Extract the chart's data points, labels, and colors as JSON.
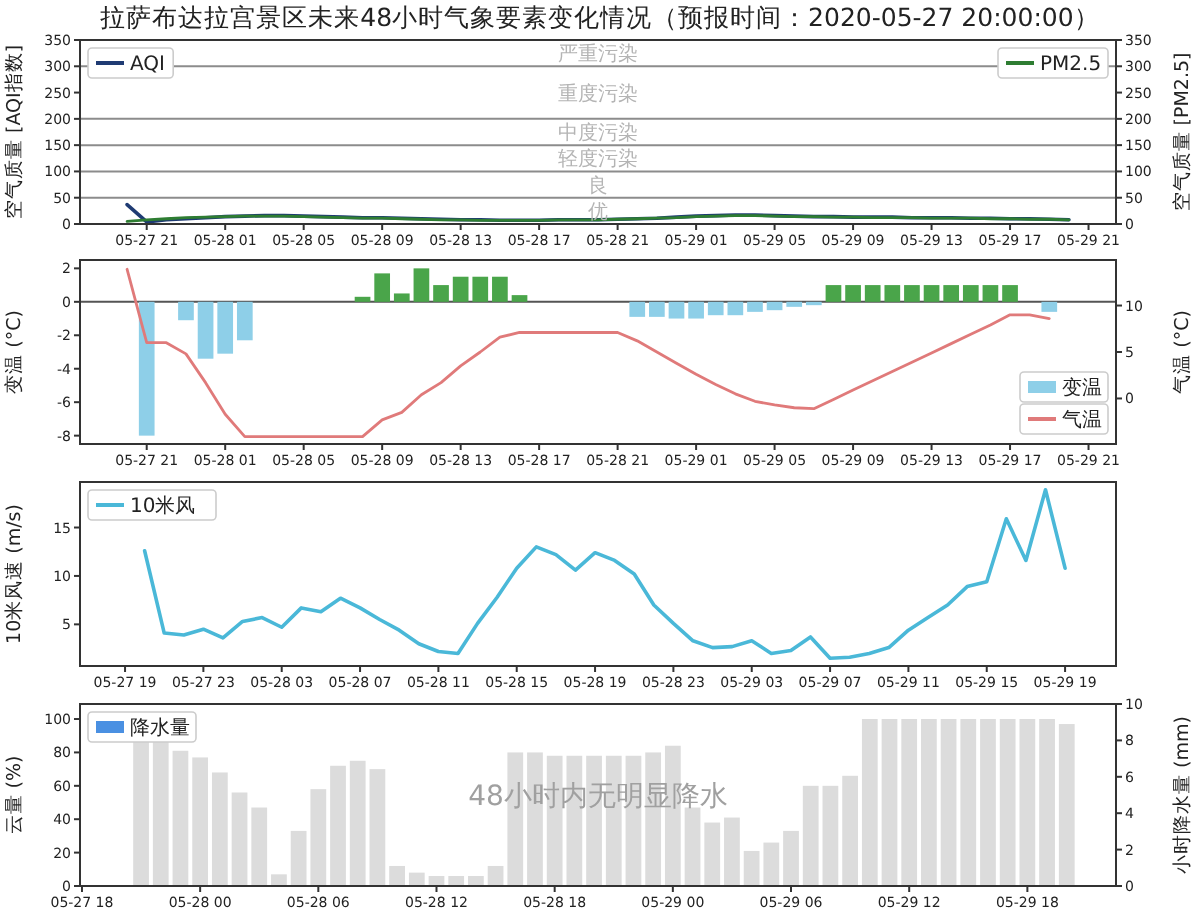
{
  "chart_data": [
    {
      "type": "line",
      "title": "拉萨布达拉宫景区未来48小时气象要素变化情况（预报时间：2020-05-27 20:00:00）",
      "ylabel": "空气质量 [AQI指数]",
      "y2label": "空气质量 [PM2.5]",
      "x": [
        "2020-05-27T20:00",
        "2020-05-27T21:00",
        "2020-05-27T22:00",
        "2020-05-27T23:00",
        "2020-05-28T00:00",
        "2020-05-28T01:00",
        "2020-05-28T02:00",
        "2020-05-28T03:00",
        "2020-05-28T04:00",
        "2020-05-28T05:00",
        "2020-05-28T06:00",
        "2020-05-28T07:00",
        "2020-05-28T08:00",
        "2020-05-28T09:00",
        "2020-05-28T10:00",
        "2020-05-28T11:00",
        "2020-05-28T12:00",
        "2020-05-28T13:00",
        "2020-05-28T14:00",
        "2020-05-28T15:00",
        "2020-05-28T16:00",
        "2020-05-28T17:00",
        "2020-05-28T18:00",
        "2020-05-28T19:00",
        "2020-05-28T20:00",
        "2020-05-28T21:00",
        "2020-05-28T22:00",
        "2020-05-28T23:00",
        "2020-05-29T00:00",
        "2020-05-29T01:00",
        "2020-05-29T02:00",
        "2020-05-29T03:00",
        "2020-05-29T04:00",
        "2020-05-29T05:00",
        "2020-05-29T06:00",
        "2020-05-29T07:00",
        "2020-05-29T08:00",
        "2020-05-29T09:00",
        "2020-05-29T10:00",
        "2020-05-29T11:00",
        "2020-05-29T12:00",
        "2020-05-29T13:00",
        "2020-05-29T14:00",
        "2020-05-29T15:00",
        "2020-05-29T16:00",
        "2020-05-29T17:00",
        "2020-05-29T18:00",
        "2020-05-29T19:00",
        "2020-05-29T20:00"
      ],
      "xlim": [
        "2020-05-27T17:36",
        "2020-05-29T22:24"
      ],
      "xticks": [
        {
          "value": "2020-05-27T21:00",
          "label": "05-27 21"
        },
        {
          "value": "2020-05-28T01:00",
          "label": "05-28 01"
        },
        {
          "value": "2020-05-28T05:00",
          "label": "05-28 05"
        },
        {
          "value": "2020-05-28T09:00",
          "label": "05-28 09"
        },
        {
          "value": "2020-05-28T13:00",
          "label": "05-28 13"
        },
        {
          "value": "2020-05-28T17:00",
          "label": "05-28 17"
        },
        {
          "value": "2020-05-28T21:00",
          "label": "05-28 21"
        },
        {
          "value": "2020-05-29T01:00",
          "label": "05-29 01"
        },
        {
          "value": "2020-05-29T05:00",
          "label": "05-29 05"
        },
        {
          "value": "2020-05-29T09:00",
          "label": "05-29 09"
        },
        {
          "value": "2020-05-29T13:00",
          "label": "05-29 13"
        },
        {
          "value": "2020-05-29T17:00",
          "label": "05-29 17"
        },
        {
          "value": "2020-05-29T21:00",
          "label": "05-29 21"
        }
      ],
      "ylim": [
        0,
        350
      ],
      "yticks": [
        0,
        50,
        100,
        150,
        200,
        250,
        300,
        350
      ],
      "y2lim": [
        0,
        350
      ],
      "y2ticks": [
        0,
        50,
        100,
        150,
        200,
        250,
        300,
        350
      ],
      "series": [
        {
          "name": "AQI",
          "color": "#1f3b73",
          "values": [
            37,
            4,
            8,
            10,
            12,
            14,
            15,
            16,
            16,
            15,
            14,
            13,
            12,
            12,
            11,
            10,
            9,
            8,
            8,
            7,
            7,
            7,
            8,
            8,
            8,
            9,
            10,
            11,
            13,
            15,
            16,
            17,
            17,
            16,
            15,
            14,
            14,
            13,
            13,
            13,
            12,
            12,
            12,
            11,
            11,
            10,
            10,
            9,
            8
          ]
        },
        {
          "name": "PM2.5",
          "color": "#2e7d32",
          "axis": "y2",
          "values": [
            5,
            8,
            10,
            12,
            13,
            14,
            15,
            15,
            15,
            14,
            13,
            12,
            11,
            11,
            10,
            9,
            8,
            8,
            7,
            7,
            7,
            7,
            8,
            8,
            8,
            9,
            10,
            11,
            12,
            14,
            15,
            16,
            16,
            15,
            14,
            14,
            13,
            13,
            12,
            12,
            12,
            11,
            11,
            11,
            10,
            10,
            9,
            9,
            8
          ]
        }
      ],
      "ref_lines": [
        {
          "axis": "y",
          "value": 50,
          "color": "#8c8c8c"
        },
        {
          "axis": "y",
          "value": 100,
          "color": "#8c8c8c"
        },
        {
          "axis": "y",
          "value": 150,
          "color": "#8c8c8c"
        },
        {
          "axis": "y",
          "value": 200,
          "color": "#8c8c8c"
        },
        {
          "axis": "y",
          "value": 300,
          "color": "#8c8c8c"
        }
      ],
      "annotations": [
        "优",
        "良",
        "轻度污染",
        "中度污染",
        "重度污染",
        "严重污染"
      ],
      "legend": "top"
    },
    {
      "type": "bar",
      "ylabel": "变温 (°C)",
      "y2label": "气温 (°C)",
      "xlim": [
        "2020-05-27T17:36",
        "2020-05-29T22:24"
      ],
      "xticks": [
        {
          "value": "2020-05-27T21:00",
          "label": "05-27 21"
        },
        {
          "value": "2020-05-28T01:00",
          "label": "05-28 01"
        },
        {
          "value": "2020-05-28T05:00",
          "label": "05-28 05"
        },
        {
          "value": "2020-05-28T09:00",
          "label": "05-28 09"
        },
        {
          "value": "2020-05-28T13:00",
          "label": "05-28 13"
        },
        {
          "value": "2020-05-28T17:00",
          "label": "05-28 17"
        },
        {
          "value": "2020-05-28T21:00",
          "label": "05-28 21"
        },
        {
          "value": "2020-05-29T01:00",
          "label": "05-29 01"
        },
        {
          "value": "2020-05-29T05:00",
          "label": "05-29 05"
        },
        {
          "value": "2020-05-29T09:00",
          "label": "05-29 09"
        },
        {
          "value": "2020-05-29T13:00",
          "label": "05-29 13"
        },
        {
          "value": "2020-05-29T17:00",
          "label": "05-29 17"
        },
        {
          "value": "2020-05-29T21:00",
          "label": "05-29 21"
        }
      ],
      "ylim": [
        -8.5,
        2.5
      ],
      "yticks": [
        -8,
        -6,
        -4,
        -2,
        0,
        2
      ],
      "y2lim": [
        -4.9,
        14.9
      ],
      "y2ticks": [
        0,
        5,
        10
      ],
      "series": [
        {
          "name": "变温",
          "color": "#8ecfe8",
          "x": [
            "2020-05-27T21:00",
            "2020-05-27T23:00",
            "2020-05-28T00:00",
            "2020-05-28T01:00",
            "2020-05-28T02:00",
            "2020-05-28T08:00",
            "2020-05-28T09:00",
            "2020-05-28T10:00",
            "2020-05-28T11:00",
            "2020-05-28T12:00",
            "2020-05-28T13:00",
            "2020-05-28T14:00",
            "2020-05-28T15:00",
            "2020-05-28T16:00",
            "2020-05-28T22:00",
            "2020-05-28T23:00",
            "2020-05-29T00:00",
            "2020-05-29T01:00",
            "2020-05-29T02:00",
            "2020-05-29T03:00",
            "2020-05-29T04:00",
            "2020-05-29T05:00",
            "2020-05-29T06:00",
            "2020-05-29T07:00",
            "2020-05-29T08:00",
            "2020-05-29T09:00",
            "2020-05-29T10:00",
            "2020-05-29T11:00",
            "2020-05-29T12:00",
            "2020-05-29T13:00",
            "2020-05-29T14:00",
            "2020-05-29T15:00",
            "2020-05-29T16:00",
            "2020-05-29T17:00",
            "2020-05-29T19:00"
          ],
          "values": [
            -8.0,
            -1.1,
            -3.4,
            -3.1,
            -2.3,
            0.3,
            1.7,
            0.5,
            2.0,
            1.0,
            1.5,
            1.5,
            1.5,
            0.4,
            -0.9,
            -0.9,
            -1.0,
            -1.0,
            -0.8,
            -0.8,
            -0.6,
            -0.5,
            -0.3,
            -0.2,
            1.0,
            1.0,
            1.0,
            1.0,
            1.0,
            1.0,
            1.0,
            1.0,
            1.0,
            1.0,
            -0.6
          ],
          "colors": [
            "#8ecfe8",
            "#8ecfe8",
            "#8ecfe8",
            "#8ecfe8",
            "#8ecfe8",
            "#4aa54a",
            "#4aa54a",
            "#4aa54a",
            "#4aa54a",
            "#4aa54a",
            "#4aa54a",
            "#4aa54a",
            "#4aa54a",
            "#4aa54a",
            "#8ecfe8",
            "#8ecfe8",
            "#8ecfe8",
            "#8ecfe8",
            "#8ecfe8",
            "#8ecfe8",
            "#8ecfe8",
            "#8ecfe8",
            "#8ecfe8",
            "#8ecfe8",
            "#4aa54a",
            "#4aa54a",
            "#4aa54a",
            "#4aa54a",
            "#4aa54a",
            "#4aa54a",
            "#4aa54a",
            "#4aa54a",
            "#4aa54a",
            "#4aa54a",
            "#8ecfe8"
          ]
        },
        {
          "name": "气温",
          "type": "line",
          "axis": "y2",
          "color": "#e07a7a",
          "x": [
            "2020-05-27T20:00",
            "2020-05-27T21:00",
            "2020-05-27T22:00",
            "2020-05-27T23:00",
            "2020-05-28T00:00",
            "2020-05-28T01:00",
            "2020-05-28T02:00",
            "2020-05-28T03:00",
            "2020-05-28T04:00",
            "2020-05-28T05:00",
            "2020-05-28T06:00",
            "2020-05-28T07:00",
            "2020-05-28T08:00",
            "2020-05-28T09:00",
            "2020-05-28T10:00",
            "2020-05-28T11:00",
            "2020-05-28T12:00",
            "2020-05-28T13:00",
            "2020-05-28T14:00",
            "2020-05-28T15:00",
            "2020-05-28T16:00",
            "2020-05-28T17:00",
            "2020-05-28T18:00",
            "2020-05-28T19:00",
            "2020-05-28T20:00",
            "2020-05-28T21:00",
            "2020-05-28T22:00",
            "2020-05-28T23:00",
            "2020-05-29T00:00",
            "2020-05-29T01:00",
            "2020-05-29T02:00",
            "2020-05-29T03:00",
            "2020-05-29T04:00",
            "2020-05-29T05:00",
            "2020-05-29T06:00",
            "2020-05-29T07:00",
            "2020-05-29T08:00",
            "2020-05-29T09:00",
            "2020-05-29T10:00",
            "2020-05-29T11:00",
            "2020-05-29T12:00",
            "2020-05-29T13:00",
            "2020-05-29T14:00",
            "2020-05-29T15:00",
            "2020-05-29T16:00",
            "2020-05-29T17:00",
            "2020-05-29T18:00",
            "2020-05-29T19:00"
          ],
          "values": [
            13.9,
            6.0,
            6.0,
            4.8,
            1.7,
            -1.7,
            -4.1,
            -4.1,
            -4.1,
            -4.1,
            -4.1,
            -4.1,
            -4.1,
            -2.3,
            -1.5,
            0.4,
            1.7,
            3.5,
            5.0,
            6.6,
            7.1,
            7.1,
            7.1,
            7.1,
            7.1,
            7.1,
            6.2,
            5.0,
            3.8,
            2.6,
            1.5,
            0.5,
            -0.3,
            -0.7,
            -1.0,
            -1.1,
            -0.1,
            0.9,
            1.9,
            2.9,
            3.9,
            4.9,
            5.9,
            6.9,
            7.9,
            9.0,
            9.0,
            8.6
          ]
        }
      ],
      "ref_lines": [
        {
          "axis": "y",
          "value": 0,
          "color": "#555555"
        }
      ],
      "legend": "bottom right"
    },
    {
      "type": "line",
      "ylabel": "10米风速 (m/s)",
      "x": [
        "2020-05-27T20:00",
        "2020-05-27T21:00",
        "2020-05-27T22:00",
        "2020-05-27T23:00",
        "2020-05-28T00:00",
        "2020-05-28T01:00",
        "2020-05-28T02:00",
        "2020-05-28T03:00",
        "2020-05-28T04:00",
        "2020-05-28T05:00",
        "2020-05-28T06:00",
        "2020-05-28T07:00",
        "2020-05-28T08:00",
        "2020-05-28T09:00",
        "2020-05-28T10:00",
        "2020-05-28T11:00",
        "2020-05-28T12:00",
        "2020-05-28T13:00",
        "2020-05-28T14:00",
        "2020-05-28T15:00",
        "2020-05-28T16:00",
        "2020-05-28T17:00",
        "2020-05-28T18:00",
        "2020-05-28T19:00",
        "2020-05-28T20:00",
        "2020-05-28T21:00",
        "2020-05-28T22:00",
        "2020-05-28T23:00",
        "2020-05-29T00:00",
        "2020-05-29T01:00",
        "2020-05-29T02:00",
        "2020-05-29T03:00",
        "2020-05-29T04:00",
        "2020-05-29T05:00",
        "2020-05-29T06:00",
        "2020-05-29T07:00",
        "2020-05-29T08:00",
        "2020-05-29T09:00",
        "2020-05-29T10:00",
        "2020-05-29T11:00",
        "2020-05-29T12:00",
        "2020-05-29T13:00",
        "2020-05-29T14:00",
        "2020-05-29T15:00",
        "2020-05-29T16:00",
        "2020-05-29T17:00",
        "2020-05-29T18:00",
        "2020-05-29T19:00"
      ],
      "xlim": [
        "2020-05-27T16:42",
        "2020-05-29T21:36"
      ],
      "xticks": [
        {
          "value": "2020-05-27T19:00",
          "label": "05-27 19"
        },
        {
          "value": "2020-05-27T23:00",
          "label": "05-27 23"
        },
        {
          "value": "2020-05-28T03:00",
          "label": "05-28 03"
        },
        {
          "value": "2020-05-28T07:00",
          "label": "05-28 07"
        },
        {
          "value": "2020-05-28T11:00",
          "label": "05-28 11"
        },
        {
          "value": "2020-05-28T15:00",
          "label": "05-28 15"
        },
        {
          "value": "2020-05-28T19:00",
          "label": "05-28 19"
        },
        {
          "value": "2020-05-28T23:00",
          "label": "05-28 23"
        },
        {
          "value": "2020-05-29T03:00",
          "label": "05-29 03"
        },
        {
          "value": "2020-05-29T07:00",
          "label": "05-29 07"
        },
        {
          "value": "2020-05-29T11:00",
          "label": "05-29 11"
        },
        {
          "value": "2020-05-29T15:00",
          "label": "05-29 15"
        },
        {
          "value": "2020-05-29T19:00",
          "label": "05-29 19"
        }
      ],
      "ylim": [
        0.7,
        19.7
      ],
      "yticks": [
        5,
        10,
        15
      ],
      "series": [
        {
          "name": "10米风",
          "color": "#4ab8d8",
          "values": [
            12.6,
            4.1,
            3.9,
            4.5,
            3.6,
            5.3,
            5.7,
            4.7,
            6.7,
            6.3,
            7.7,
            6.7,
            5.5,
            4.4,
            3.0,
            2.2,
            2.0,
            5.1,
            7.8,
            10.8,
            13.0,
            12.2,
            10.6,
            12.4,
            11.6,
            10.2,
            7.0,
            5.1,
            3.3,
            2.6,
            2.7,
            3.3,
            2.0,
            2.3,
            3.7,
            1.5,
            1.6,
            2.0,
            2.6,
            4.4,
            5.7,
            7.0,
            8.9,
            9.4,
            15.9,
            11.6,
            18.9,
            10.8
          ]
        }
      ],
      "legend": "top left"
    },
    {
      "type": "bar",
      "ylabel": "云量 (%)",
      "y2label": "小时降水量 (mm)",
      "x": [
        "2020-05-27T21:00",
        "2020-05-27T22:00",
        "2020-05-27T23:00",
        "2020-05-28T00:00",
        "2020-05-28T01:00",
        "2020-05-28T02:00",
        "2020-05-28T03:00",
        "2020-05-28T04:00",
        "2020-05-28T05:00",
        "2020-05-28T06:00",
        "2020-05-28T07:00",
        "2020-05-28T08:00",
        "2020-05-28T09:00",
        "2020-05-28T10:00",
        "2020-05-28T11:00",
        "2020-05-28T12:00",
        "2020-05-28T13:00",
        "2020-05-28T14:00",
        "2020-05-28T15:00",
        "2020-05-28T16:00",
        "2020-05-28T17:00",
        "2020-05-28T18:00",
        "2020-05-28T19:00",
        "2020-05-28T20:00",
        "2020-05-28T21:00",
        "2020-05-28T22:00",
        "2020-05-28T23:00",
        "2020-05-29T00:00",
        "2020-05-29T01:00",
        "2020-05-29T02:00",
        "2020-05-29T03:00",
        "2020-05-29T04:00",
        "2020-05-29T05:00",
        "2020-05-29T06:00",
        "2020-05-29T07:00",
        "2020-05-29T08:00",
        "2020-05-29T09:00",
        "2020-05-29T10:00",
        "2020-05-29T11:00",
        "2020-05-29T12:00",
        "2020-05-29T13:00",
        "2020-05-29T14:00",
        "2020-05-29T15:00",
        "2020-05-29T16:00",
        "2020-05-29T17:00",
        "2020-05-29T18:00",
        "2020-05-29T19:00",
        "2020-05-29T20:00"
      ],
      "xlim": [
        "2020-05-27T17:54",
        "2020-05-29T22:30"
      ],
      "xticks": [
        {
          "value": "2020-05-27T18:00",
          "label": "05-27 18"
        },
        {
          "value": "2020-05-28T00:00",
          "label": "05-28 00"
        },
        {
          "value": "2020-05-28T06:00",
          "label": "05-28 06"
        },
        {
          "value": "2020-05-28T12:00",
          "label": "05-28 12"
        },
        {
          "value": "2020-05-28T18:00",
          "label": "05-28 18"
        },
        {
          "value": "2020-05-29T00:00",
          "label": "05-29 00"
        },
        {
          "value": "2020-05-29T06:00",
          "label": "05-29 06"
        },
        {
          "value": "2020-05-29T12:00",
          "label": "05-29 12"
        },
        {
          "value": "2020-05-29T18:00",
          "label": "05-29 18"
        }
      ],
      "ylim": [
        0,
        109
      ],
      "yticks": [
        0,
        20,
        40,
        60,
        80,
        100
      ],
      "y2lim": [
        0,
        10
      ],
      "y2ticks": [
        0,
        2,
        4,
        6,
        8,
        10
      ],
      "series": [
        {
          "color": "#dcdcdc",
          "values": [
            90,
            90,
            81,
            77,
            68,
            56,
            47,
            7,
            33,
            58,
            72,
            75,
            70,
            12,
            8,
            6,
            6,
            6,
            12,
            80,
            80,
            78,
            78,
            78,
            78,
            78,
            80,
            84,
            47,
            38,
            41,
            21,
            26,
            33,
            60,
            60,
            66,
            100,
            100,
            100,
            100,
            100,
            100,
            100,
            100,
            100,
            100,
            97
          ]
        },
        {
          "name": "降水量",
          "color": "#4a90e2",
          "axis": "y2",
          "values": [
            0,
            0,
            0,
            0,
            0,
            0,
            0,
            0,
            0,
            0,
            0,
            0,
            0,
            0,
            0,
            0,
            0,
            0,
            0,
            0,
            0,
            0,
            0,
            0,
            0,
            0,
            0,
            0,
            0,
            0,
            0,
            0,
            0,
            0,
            0,
            0,
            0,
            0,
            0,
            0,
            0,
            0,
            0,
            0,
            0,
            0,
            0,
            0
          ]
        }
      ],
      "annotations": [
        "48小时内无明显降水"
      ],
      "legend": "top left"
    }
  ]
}
